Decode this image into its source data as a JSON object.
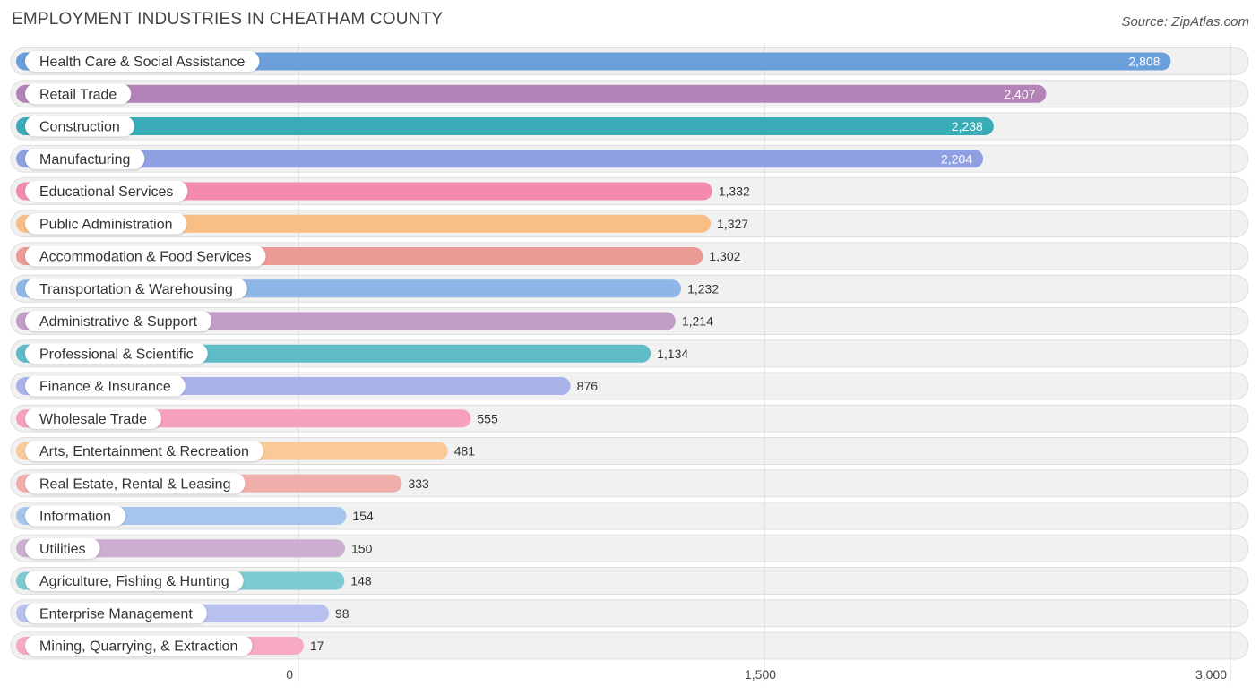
{
  "chart_data": {
    "type": "bar",
    "orientation": "horizontal",
    "title": "EMPLOYMENT INDUSTRIES IN CHEATHAM COUNTY",
    "source": "Source: ZipAtlas.com",
    "xlim": [
      0,
      3000
    ],
    "ticks": [
      {
        "value": 0,
        "label": "0"
      },
      {
        "value": 1500,
        "label": "1,500"
      },
      {
        "value": 3000,
        "label": "3,000"
      }
    ],
    "bars": [
      {
        "category": "Health Care & Social Assistance",
        "value": 2808,
        "label": "2,808",
        "color": "#6a9fdc"
      },
      {
        "category": "Retail Trade",
        "value": 2407,
        "label": "2,407",
        "color": "#b383b8"
      },
      {
        "category": "Construction",
        "value": 2238,
        "label": "2,238",
        "color": "#3aacb8"
      },
      {
        "category": "Manufacturing",
        "value": 2204,
        "label": "2,204",
        "color": "#8e9fe2"
      },
      {
        "category": "Educational Services",
        "value": 1332,
        "label": "1,332",
        "color": "#f48aac"
      },
      {
        "category": "Public Administration",
        "value": 1327,
        "label": "1,327",
        "color": "#f9be85"
      },
      {
        "category": "Accommodation & Food Services",
        "value": 1302,
        "label": "1,302",
        "color": "#ec9a96"
      },
      {
        "category": "Transportation & Warehousing",
        "value": 1232,
        "label": "1,232",
        "color": "#8eb6e6"
      },
      {
        "category": "Administrative & Support",
        "value": 1214,
        "label": "1,214",
        "color": "#c29dc8"
      },
      {
        "category": "Professional & Scientific",
        "value": 1134,
        "label": "1,134",
        "color": "#5ebcc8"
      },
      {
        "category": "Finance & Insurance",
        "value": 876,
        "label": "876",
        "color": "#a9b3ea"
      },
      {
        "category": "Wholesale Trade",
        "value": 555,
        "label": "555",
        "color": "#f6a0bc"
      },
      {
        "category": "Arts, Entertainment & Recreation",
        "value": 481,
        "label": "481",
        "color": "#f9c99a"
      },
      {
        "category": "Real Estate, Rental & Leasing",
        "value": 333,
        "label": "333",
        "color": "#f0aeaa"
      },
      {
        "category": "Information",
        "value": 154,
        "label": "154",
        "color": "#a6c4ec"
      },
      {
        "category": "Utilities",
        "value": 150,
        "label": "150",
        "color": "#ccaed0"
      },
      {
        "category": "Agriculture, Fishing & Hunting",
        "value": 148,
        "label": "148",
        "color": "#7ccad2"
      },
      {
        "category": "Enterprise Management",
        "value": 98,
        "label": "98",
        "color": "#b8c0ee"
      },
      {
        "category": "Mining, Quarrying, & Extraction",
        "value": 17,
        "label": "17",
        "color": "#f7a8c2"
      }
    ]
  }
}
